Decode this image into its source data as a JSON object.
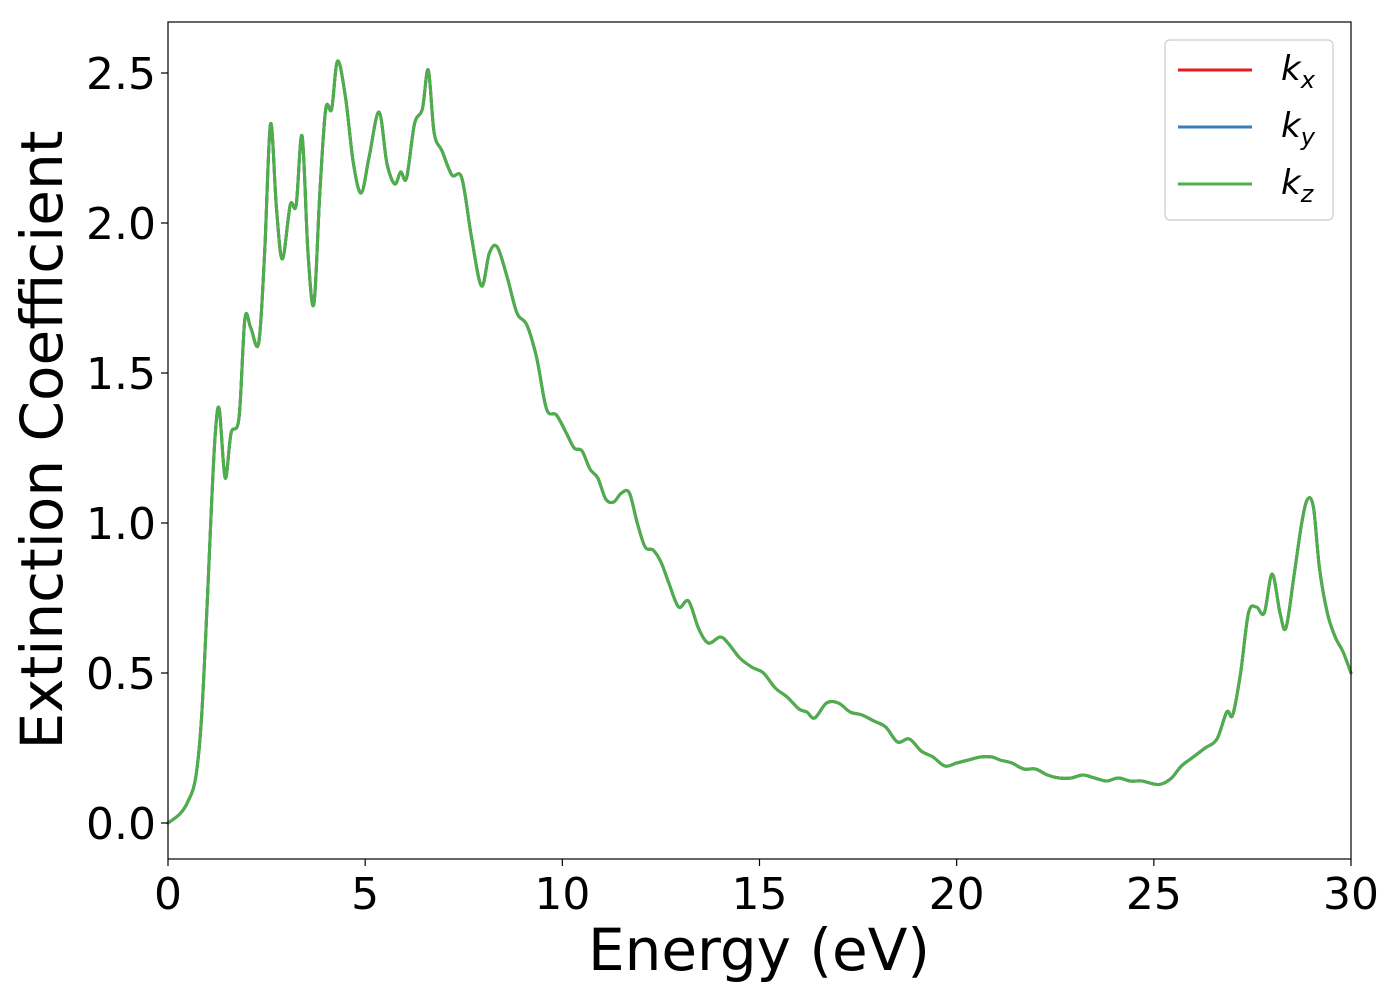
{
  "chart_data": {
    "type": "line",
    "xlabel": "Energy (eV)",
    "ylabel": "Extinction Coefficient",
    "xlim": [
      0,
      30
    ],
    "ylim": [
      -0.12,
      2.67
    ],
    "xticks": [
      0,
      5,
      10,
      15,
      20,
      25,
      30
    ],
    "xtick_labels": [
      "0",
      "5",
      "10",
      "15",
      "20",
      "25",
      "30"
    ],
    "yticks": [
      0.0,
      0.5,
      1.0,
      1.5,
      2.0,
      2.5
    ],
    "ytick_labels": [
      "0.0",
      "0.5",
      "1.0",
      "1.5",
      "2.0",
      "2.5"
    ],
    "grid": false,
    "legend_position": "top-right",
    "x": [
      0,
      0.3,
      0.5,
      0.7,
      0.85,
      1.0,
      1.1,
      1.2,
      1.3,
      1.45,
      1.6,
      1.8,
      1.95,
      2.1,
      2.3,
      2.45,
      2.6,
      2.75,
      2.9,
      3.1,
      3.25,
      3.4,
      3.55,
      3.7,
      3.85,
      4.0,
      4.15,
      4.3,
      4.5,
      4.7,
      4.9,
      5.1,
      5.35,
      5.55,
      5.75,
      5.9,
      6.05,
      6.25,
      6.45,
      6.6,
      6.75,
      6.95,
      7.2,
      7.45,
      7.7,
      7.95,
      8.15,
      8.35,
      8.6,
      8.85,
      9.1,
      9.35,
      9.6,
      9.85,
      10.1,
      10.3,
      10.5,
      10.7,
      10.9,
      11.1,
      11.3,
      11.5,
      11.7,
      11.9,
      12.1,
      12.3,
      12.5,
      12.7,
      12.95,
      13.2,
      13.45,
      13.7,
      14.0,
      14.2,
      14.5,
      14.8,
      15.1,
      15.4,
      15.7,
      16.0,
      16.2,
      16.4,
      16.7,
      17.0,
      17.3,
      17.6,
      17.9,
      18.2,
      18.5,
      18.8,
      19.1,
      19.4,
      19.7,
      20.0,
      20.3,
      20.6,
      20.9,
      21.1,
      21.4,
      21.7,
      22.0,
      22.3,
      22.6,
      22.9,
      23.2,
      23.5,
      23.8,
      24.1,
      24.4,
      24.7,
      25.0,
      25.2,
      25.45,
      25.7,
      26.0,
      26.3,
      26.6,
      26.85,
      27.0,
      27.2,
      27.4,
      27.6,
      27.8,
      28.0,
      28.2,
      28.35,
      28.55,
      28.75,
      28.9,
      29.05,
      29.2,
      29.4,
      29.6,
      29.8,
      30.0
    ],
    "series": [
      {
        "name": "k_x",
        "name_base": "k",
        "name_sub": "x",
        "color": "#e41a1c",
        "values": [
          0.0,
          0.03,
          0.07,
          0.15,
          0.35,
          0.75,
          1.05,
          1.3,
          1.38,
          1.15,
          1.3,
          1.35,
          1.68,
          1.65,
          1.6,
          1.9,
          2.33,
          2.05,
          1.88,
          2.06,
          2.06,
          2.29,
          1.9,
          1.73,
          2.1,
          2.38,
          2.38,
          2.54,
          2.42,
          2.2,
          2.1,
          2.22,
          2.37,
          2.2,
          2.13,
          2.17,
          2.15,
          2.33,
          2.38,
          2.51,
          2.3,
          2.24,
          2.16,
          2.15,
          1.95,
          1.79,
          1.9,
          1.92,
          1.82,
          1.7,
          1.66,
          1.55,
          1.38,
          1.36,
          1.3,
          1.25,
          1.24,
          1.18,
          1.15,
          1.08,
          1.07,
          1.1,
          1.1,
          1.0,
          0.92,
          0.91,
          0.87,
          0.8,
          0.72,
          0.74,
          0.65,
          0.6,
          0.62,
          0.6,
          0.55,
          0.52,
          0.5,
          0.45,
          0.42,
          0.38,
          0.37,
          0.35,
          0.4,
          0.4,
          0.37,
          0.36,
          0.34,
          0.32,
          0.27,
          0.28,
          0.24,
          0.22,
          0.19,
          0.2,
          0.21,
          0.22,
          0.22,
          0.21,
          0.2,
          0.18,
          0.18,
          0.16,
          0.15,
          0.15,
          0.16,
          0.15,
          0.14,
          0.15,
          0.14,
          0.14,
          0.13,
          0.13,
          0.15,
          0.19,
          0.22,
          0.25,
          0.28,
          0.37,
          0.36,
          0.5,
          0.7,
          0.72,
          0.7,
          0.83,
          0.7,
          0.65,
          0.82,
          1.0,
          1.08,
          1.05,
          0.85,
          0.7,
          0.62,
          0.57,
          0.5
        ]
      },
      {
        "name": "k_y",
        "name_base": "k",
        "name_sub": "y",
        "color": "#377eb8",
        "values": [
          0.0,
          0.03,
          0.07,
          0.15,
          0.35,
          0.75,
          1.05,
          1.3,
          1.38,
          1.15,
          1.3,
          1.35,
          1.68,
          1.65,
          1.6,
          1.9,
          2.33,
          2.05,
          1.88,
          2.06,
          2.06,
          2.29,
          1.9,
          1.73,
          2.1,
          2.38,
          2.38,
          2.54,
          2.42,
          2.2,
          2.1,
          2.22,
          2.37,
          2.2,
          2.13,
          2.17,
          2.15,
          2.33,
          2.38,
          2.51,
          2.3,
          2.24,
          2.16,
          2.15,
          1.95,
          1.79,
          1.9,
          1.92,
          1.82,
          1.7,
          1.66,
          1.55,
          1.38,
          1.36,
          1.3,
          1.25,
          1.24,
          1.18,
          1.15,
          1.08,
          1.07,
          1.1,
          1.1,
          1.0,
          0.92,
          0.91,
          0.87,
          0.8,
          0.72,
          0.74,
          0.65,
          0.6,
          0.62,
          0.6,
          0.55,
          0.52,
          0.5,
          0.45,
          0.42,
          0.38,
          0.37,
          0.35,
          0.4,
          0.4,
          0.37,
          0.36,
          0.34,
          0.32,
          0.27,
          0.28,
          0.24,
          0.22,
          0.19,
          0.2,
          0.21,
          0.22,
          0.22,
          0.21,
          0.2,
          0.18,
          0.18,
          0.16,
          0.15,
          0.15,
          0.16,
          0.15,
          0.14,
          0.15,
          0.14,
          0.14,
          0.13,
          0.13,
          0.15,
          0.19,
          0.22,
          0.25,
          0.28,
          0.37,
          0.36,
          0.5,
          0.7,
          0.72,
          0.7,
          0.83,
          0.7,
          0.65,
          0.82,
          1.0,
          1.08,
          1.05,
          0.85,
          0.7,
          0.62,
          0.57,
          0.5
        ]
      },
      {
        "name": "k_z",
        "name_base": "k",
        "name_sub": "z",
        "color": "#4daf4a",
        "values": [
          0.0,
          0.03,
          0.07,
          0.15,
          0.35,
          0.75,
          1.05,
          1.3,
          1.38,
          1.15,
          1.3,
          1.35,
          1.68,
          1.65,
          1.6,
          1.9,
          2.33,
          2.05,
          1.88,
          2.06,
          2.06,
          2.29,
          1.9,
          1.73,
          2.1,
          2.38,
          2.38,
          2.54,
          2.42,
          2.2,
          2.1,
          2.22,
          2.37,
          2.2,
          2.13,
          2.17,
          2.15,
          2.33,
          2.38,
          2.51,
          2.3,
          2.24,
          2.16,
          2.15,
          1.95,
          1.79,
          1.9,
          1.92,
          1.82,
          1.7,
          1.66,
          1.55,
          1.38,
          1.36,
          1.3,
          1.25,
          1.24,
          1.18,
          1.15,
          1.08,
          1.07,
          1.1,
          1.1,
          1.0,
          0.92,
          0.91,
          0.87,
          0.8,
          0.72,
          0.74,
          0.65,
          0.6,
          0.62,
          0.6,
          0.55,
          0.52,
          0.5,
          0.45,
          0.42,
          0.38,
          0.37,
          0.35,
          0.4,
          0.4,
          0.37,
          0.36,
          0.34,
          0.32,
          0.27,
          0.28,
          0.24,
          0.22,
          0.19,
          0.2,
          0.21,
          0.22,
          0.22,
          0.21,
          0.2,
          0.18,
          0.18,
          0.16,
          0.15,
          0.15,
          0.16,
          0.15,
          0.14,
          0.15,
          0.14,
          0.14,
          0.13,
          0.13,
          0.15,
          0.19,
          0.22,
          0.25,
          0.28,
          0.37,
          0.36,
          0.5,
          0.7,
          0.72,
          0.7,
          0.83,
          0.7,
          0.65,
          0.82,
          1.0,
          1.08,
          1.05,
          0.85,
          0.7,
          0.62,
          0.57,
          0.5
        ]
      }
    ]
  }
}
